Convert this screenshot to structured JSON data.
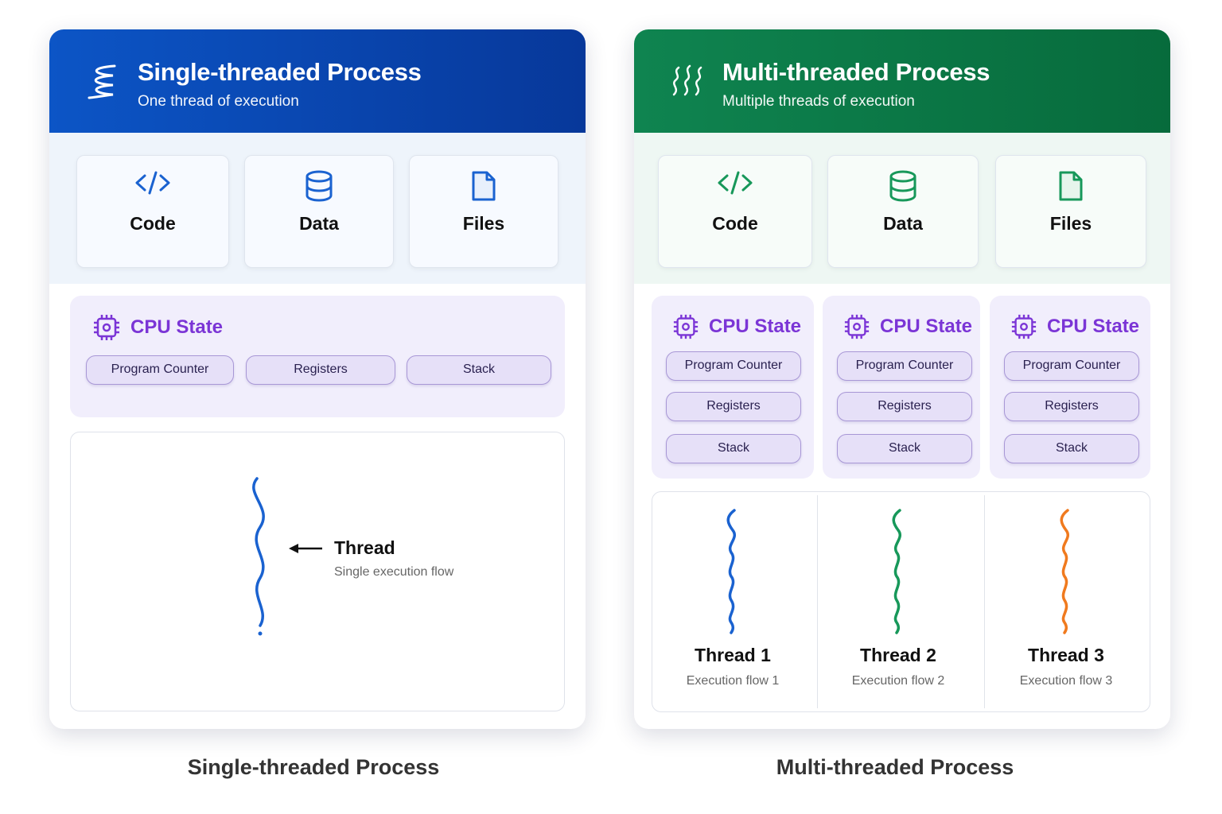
{
  "single": {
    "title": "Single-threaded Process",
    "subtitle": "One thread of execution",
    "header_color": "#0b4fc0",
    "resources": [
      "Code",
      "Data",
      "Files"
    ],
    "cpu": {
      "title": "CPU State",
      "items": [
        "Program Counter",
        "Registers",
        "Stack"
      ]
    },
    "thread": {
      "label": "Thread",
      "sub": "Single execution flow",
      "color": "#1a62d0"
    },
    "caption": "Single-threaded Process"
  },
  "multi": {
    "title": "Multi-threaded Process",
    "subtitle": "Multiple threads of execution",
    "header_color": "#0b7a45",
    "resources": [
      "Code",
      "Data",
      "Files"
    ],
    "cpu": [
      {
        "title": "CPU State",
        "items": [
          "Program Counter",
          "Registers",
          "Stack"
        ]
      },
      {
        "title": "CPU State",
        "items": [
          "Program Counter",
          "Registers",
          "Stack"
        ]
      },
      {
        "title": "CPU State",
        "items": [
          "Program Counter",
          "Registers",
          "Stack"
        ]
      }
    ],
    "threads": [
      {
        "label": "Thread 1",
        "sub": "Execution flow 1",
        "color": "#1a62d0"
      },
      {
        "label": "Thread 2",
        "sub": "Execution flow 2",
        "color": "#17985a"
      },
      {
        "label": "Thread 3",
        "sub": "Execution flow 3",
        "color": "#f07a1e"
      }
    ],
    "caption": "Multi-threaded Process"
  }
}
